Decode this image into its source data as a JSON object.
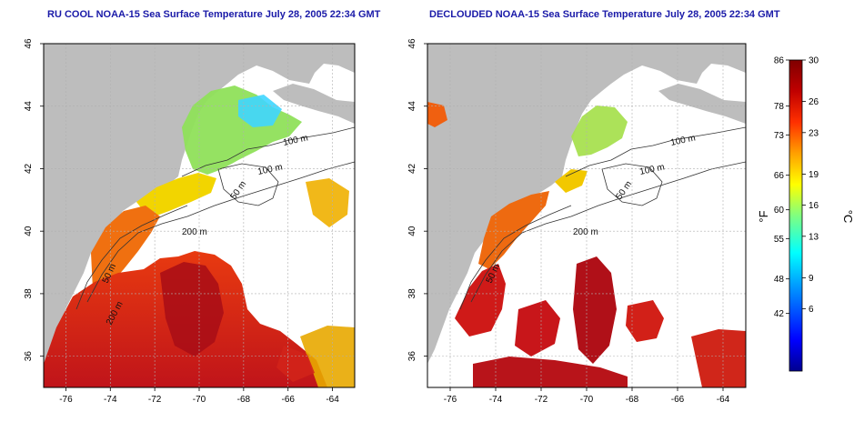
{
  "panels": [
    {
      "title": "RU COOL NOAA-15 Sea Surface Temperature July 28, 2005 22:34 GMT",
      "contour_labels": [
        "100 m",
        "100 m",
        "50 m",
        "200 m",
        "50 m",
        "200 m"
      ]
    },
    {
      "title": "DECLOUDED NOAA-15 Sea Surface Temperature July 28, 2005 22:34 GMT",
      "contour_labels": [
        "100 m",
        "100 m",
        "50 m",
        "200 m",
        "50 m"
      ]
    }
  ],
  "axes": {
    "x_ticks": [
      "-76",
      "-74",
      "-72",
      "-70",
      "-68",
      "-66",
      "-64"
    ],
    "y_ticks": [
      "46",
      "44",
      "42",
      "40",
      "38",
      "36"
    ],
    "xlim": [
      -77,
      -63
    ],
    "ylim": [
      35,
      46
    ]
  },
  "colorbar": {
    "unit_left": "°F",
    "unit_right": "°C",
    "f_ticks": [
      "86",
      "78",
      "73",
      "66",
      "60",
      "55",
      "48",
      "42"
    ],
    "c_ticks": [
      "30",
      "26",
      "23",
      "19",
      "16",
      "13",
      "9",
      "6"
    ],
    "f_values": [
      86,
      78,
      73,
      66,
      60,
      55,
      48,
      42
    ],
    "c_values": [
      30,
      26,
      23,
      19,
      16,
      13,
      9,
      6
    ],
    "range_c": [
      0,
      30
    ],
    "colors": [
      "#00008f",
      "#0000ff",
      "#00a0ff",
      "#00ffff",
      "#80ff80",
      "#ffff00",
      "#ffa000",
      "#ff3000",
      "#c00000",
      "#800000"
    ]
  },
  "colors": {
    "land": "#bdbdbd",
    "title": "#1a1aa8",
    "grid": "#b0b0b0"
  }
}
